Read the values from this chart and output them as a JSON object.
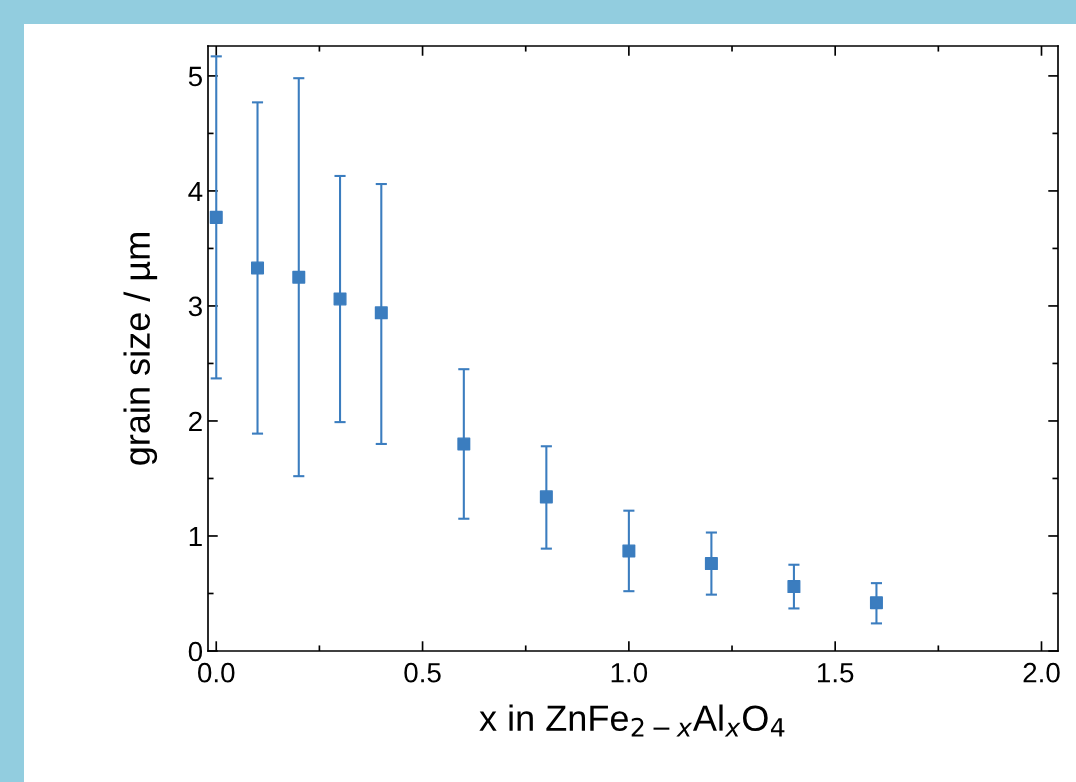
{
  "chart_data": {
    "type": "scatter",
    "xlabel": "x in ZnFe$_{2−x}$Al$_{x}$O$_{4}$",
    "ylabel": "grain size / µm",
    "x": [
      0.0,
      0.1,
      0.2,
      0.3,
      0.4,
      0.6,
      0.8,
      1.0,
      1.2,
      1.4,
      1.6
    ],
    "series": [
      {
        "color": "#3b7dbf",
        "values": [
          3.77,
          3.33,
          3.25,
          3.06,
          2.94,
          1.8,
          1.34,
          0.87,
          0.76,
          0.56,
          0.42
        ],
        "errors": [
          [
            2.37,
            5.17
          ],
          [
            1.89,
            4.77
          ],
          [
            1.52,
            4.98
          ],
          [
            1.99,
            4.13
          ],
          [
            1.8,
            4.06
          ],
          [
            1.15,
            2.45
          ],
          [
            0.89,
            1.78
          ],
          [
            0.52,
            1.22
          ],
          [
            0.49,
            1.03
          ],
          [
            0.37,
            0.75
          ],
          [
            0.24,
            0.59
          ]
        ]
      }
    ],
    "marker": "square",
    "xlim": [
      -0.02,
      2.04
    ],
    "xticks": [
      {
        "value": 0,
        "label": "0.0"
      },
      0.5,
      {
        "value": 1,
        "label": "1.0"
      },
      1.5,
      {
        "value": 2,
        "label": "2.0"
      }
    ],
    "ylim": [
      0,
      5.26
    ],
    "yticks": [
      0,
      1,
      2,
      3,
      4,
      5
    ],
    "grid": false,
    "legend": false
  }
}
